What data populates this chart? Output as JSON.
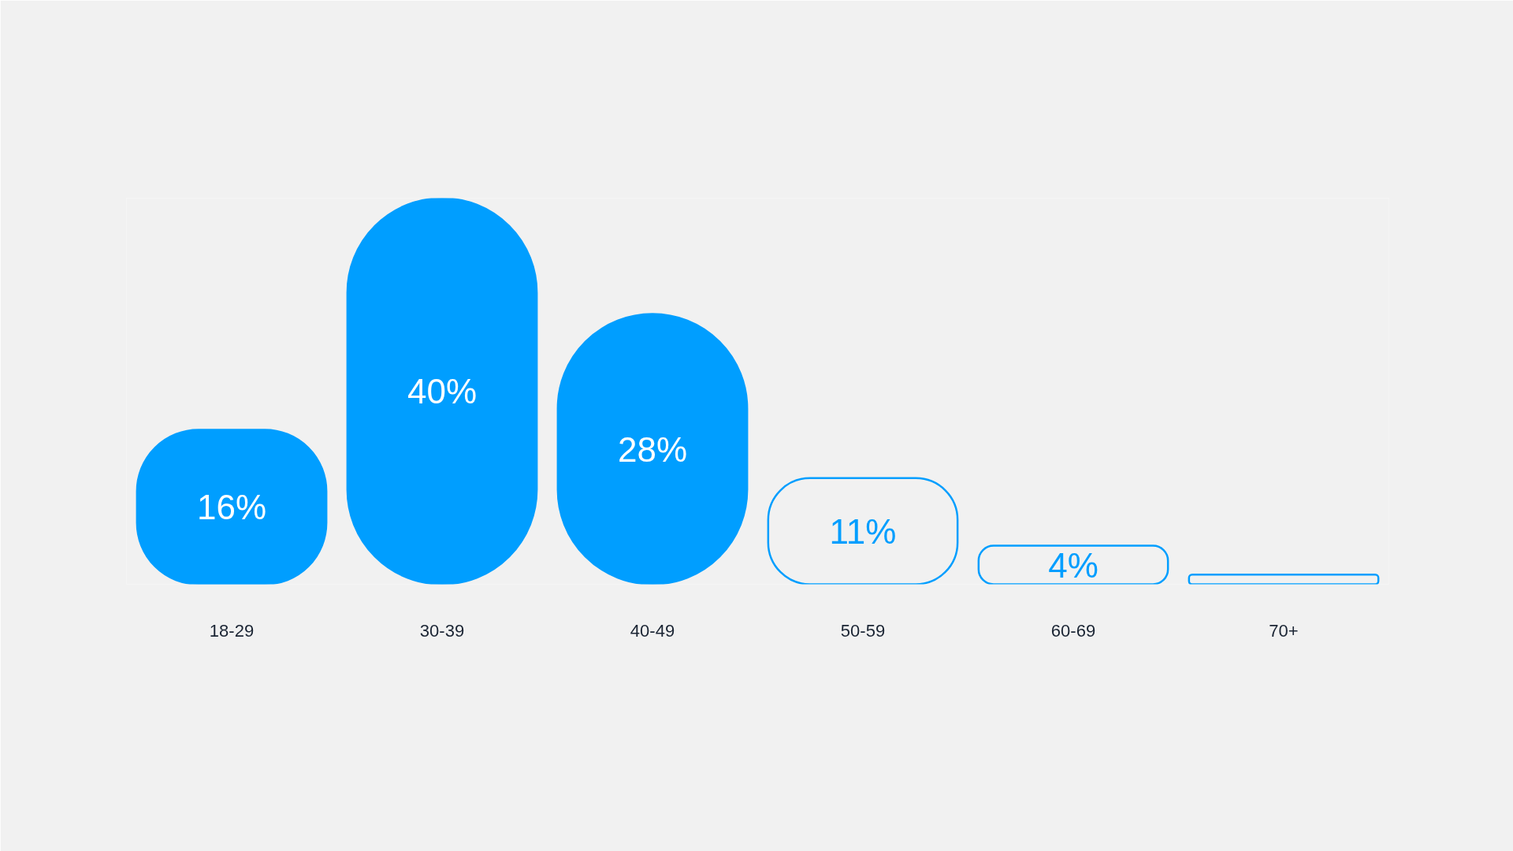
{
  "chart_data": {
    "type": "bar",
    "categories": [
      "18-29",
      "30-39",
      "40-49",
      "50-59",
      "60-69",
      "70+"
    ],
    "values": [
      16,
      40,
      28,
      11,
      4,
      1
    ],
    "value_labels": [
      "16%",
      "40%",
      "28%",
      "11%",
      "4%",
      null
    ],
    "colors": [
      "#009eff",
      "#009eff",
      "#009eff",
      "#f1f1f1",
      "#f1f1f1",
      "#f1f1f1"
    ],
    "grid": false
  }
}
